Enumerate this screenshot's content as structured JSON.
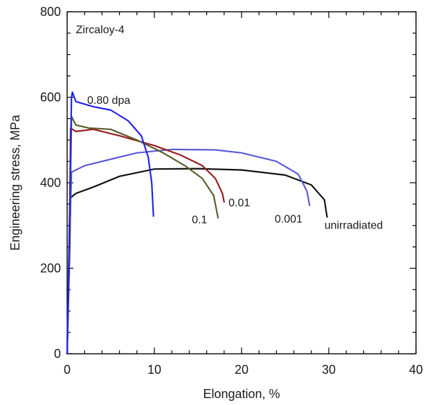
{
  "chart_data": {
    "type": "line",
    "title": "",
    "xlabel": "Elongation, %",
    "ylabel": "Engineering stress, MPa",
    "xlim": [
      0,
      40
    ],
    "ylim": [
      0,
      800
    ],
    "x_ticks": [
      0,
      10,
      20,
      30,
      40
    ],
    "y_ticks": [
      0,
      200,
      400,
      600,
      800
    ],
    "grid": false,
    "legend": "none",
    "annotations": [
      {
        "text": "Zircaloy-4",
        "x": 1,
        "y": 750
      },
      {
        "text": "0.80 dpa",
        "x": 2.3,
        "y": 585
      },
      {
        "text": "0.01",
        "x": 18.5,
        "y": 345
      },
      {
        "text": "0.1",
        "x": 14.3,
        "y": 305
      },
      {
        "text": "0.001",
        "x": 23.8,
        "y": 307
      },
      {
        "text": "unirradiated",
        "x": 29.5,
        "y": 292
      }
    ],
    "series": [
      {
        "name": "unirradiated",
        "color": "#111111",
        "points": [
          [
            0,
            0
          ],
          [
            0.3,
            250
          ],
          [
            0.4,
            365
          ],
          [
            1,
            375
          ],
          [
            3,
            390
          ],
          [
            6,
            415
          ],
          [
            10,
            432
          ],
          [
            15,
            433
          ],
          [
            20,
            430
          ],
          [
            25,
            418
          ],
          [
            28,
            395
          ],
          [
            29.5,
            360
          ],
          [
            29.8,
            320
          ]
        ]
      },
      {
        "name": "0.001",
        "color": "#5b5bd6",
        "points": [
          [
            0,
            0
          ],
          [
            0.3,
            280
          ],
          [
            0.5,
            425
          ],
          [
            2,
            440
          ],
          [
            5,
            455
          ],
          [
            8,
            470
          ],
          [
            12,
            478
          ],
          [
            17,
            477
          ],
          [
            20,
            470
          ],
          [
            24,
            450
          ],
          [
            26.5,
            420
          ],
          [
            27.5,
            380
          ],
          [
            27.8,
            347
          ]
        ]
      },
      {
        "name": "0.01",
        "color": "#9a1c1c",
        "points": [
          [
            0,
            0
          ],
          [
            0.3,
            300
          ],
          [
            0.4,
            528
          ],
          [
            1,
            520
          ],
          [
            3,
            525
          ],
          [
            6,
            510
          ],
          [
            10,
            487
          ],
          [
            13,
            465
          ],
          [
            15.5,
            440
          ],
          [
            17,
            410
          ],
          [
            17.8,
            375
          ],
          [
            18,
            355
          ]
        ]
      },
      {
        "name": "0.1",
        "color": "#5c5c2e",
        "points": [
          [
            0,
            0
          ],
          [
            0.3,
            300
          ],
          [
            0.5,
            555
          ],
          [
            1,
            535
          ],
          [
            2.5,
            528
          ],
          [
            5,
            525
          ],
          [
            8,
            500
          ],
          [
            11,
            470
          ],
          [
            13.5,
            440
          ],
          [
            15.5,
            410
          ],
          [
            16.8,
            370
          ],
          [
            17.3,
            318
          ]
        ]
      },
      {
        "name": "0.80 dpa",
        "color": "#2222ee",
        "points": [
          [
            0,
            0
          ],
          [
            0.3,
            350
          ],
          [
            0.5,
            600
          ],
          [
            0.6,
            612
          ],
          [
            1,
            590
          ],
          [
            3,
            578
          ],
          [
            5,
            570
          ],
          [
            7,
            545
          ],
          [
            8.5,
            510
          ],
          [
            9.3,
            460
          ],
          [
            9.7,
            400
          ],
          [
            9.9,
            322
          ]
        ]
      }
    ]
  }
}
